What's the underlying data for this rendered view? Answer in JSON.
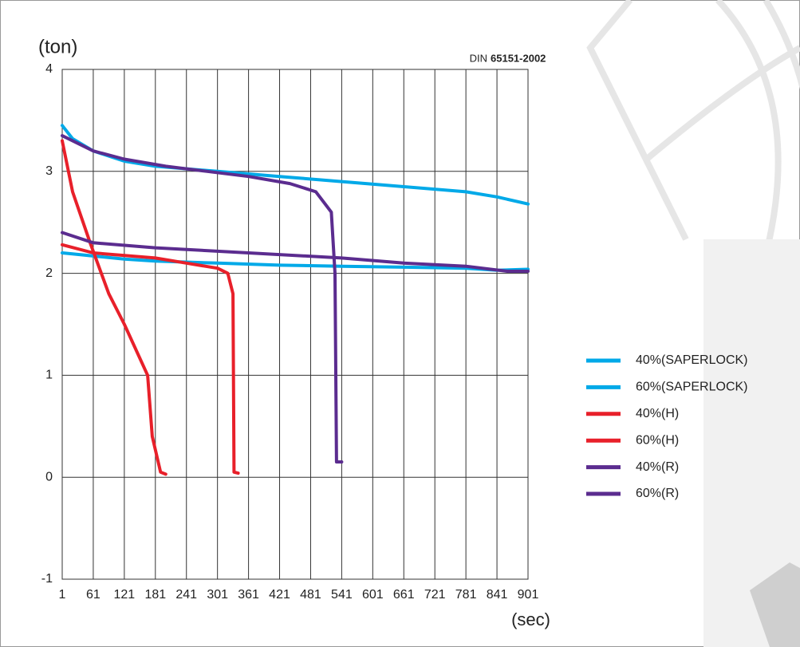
{
  "chart_data": {
    "type": "line",
    "y_label": "(ton)",
    "x_label": "(sec)",
    "standard_prefix": "DIN",
    "standard_code": "65151-2002",
    "xlim": [
      1,
      901
    ],
    "xticks": [
      1,
      61,
      121,
      181,
      241,
      301,
      361,
      421,
      481,
      541,
      601,
      661,
      721,
      781,
      841,
      901
    ],
    "ylim": [
      -1,
      4
    ],
    "yticks": [
      -1,
      0,
      1,
      2,
      3,
      4
    ],
    "grid": true,
    "series": [
      {
        "name": "40%(SAPERLOCK)",
        "color": "#00a9e8",
        "x": [
          1,
          21,
          61,
          121,
          181,
          301,
          421,
          541,
          661,
          781,
          841,
          901
        ],
        "values": [
          3.45,
          3.32,
          3.2,
          3.1,
          3.05,
          3.0,
          2.95,
          2.9,
          2.85,
          2.8,
          2.75,
          2.68
        ]
      },
      {
        "name": "60%(SAPERLOCK)",
        "color": "#00a9e8",
        "x": [
          1,
          21,
          61,
          121,
          181,
          301,
          421,
          541,
          661,
          781,
          841,
          901
        ],
        "values": [
          2.2,
          2.19,
          2.17,
          2.14,
          2.12,
          2.1,
          2.08,
          2.07,
          2.06,
          2.05,
          2.03,
          2.04
        ]
      },
      {
        "name": "40%(H)",
        "color": "#e8202a",
        "x": [
          1,
          21,
          55,
          91,
          121,
          166,
          175,
          191,
          201
        ],
        "values": [
          3.3,
          2.8,
          2.3,
          1.8,
          1.5,
          1.0,
          0.4,
          0.05,
          0.03
        ]
      },
      {
        "name": "60%(H)",
        "color": "#e8202a",
        "x": [
          1,
          61,
          181,
          241,
          301,
          321,
          331,
          333,
          341
        ],
        "values": [
          2.28,
          2.2,
          2.15,
          2.1,
          2.05,
          2.0,
          1.8,
          0.05,
          0.04
        ]
      },
      {
        "name": "40%(R)",
        "color": "#5b2c8f",
        "x": [
          1,
          61,
          121,
          201,
          281,
          361,
          441,
          491,
          521,
          528,
          531,
          541
        ],
        "values": [
          3.35,
          3.2,
          3.12,
          3.05,
          3.0,
          2.95,
          2.88,
          2.8,
          2.6,
          2.0,
          0.15,
          0.15
        ]
      },
      {
        "name": "60%(R)",
        "color": "#5b2c8f",
        "x": [
          1,
          61,
          181,
          361,
          541,
          661,
          781,
          861,
          901
        ],
        "values": [
          2.4,
          2.3,
          2.25,
          2.2,
          2.15,
          2.1,
          2.07,
          2.02,
          2.02
        ]
      }
    ]
  }
}
